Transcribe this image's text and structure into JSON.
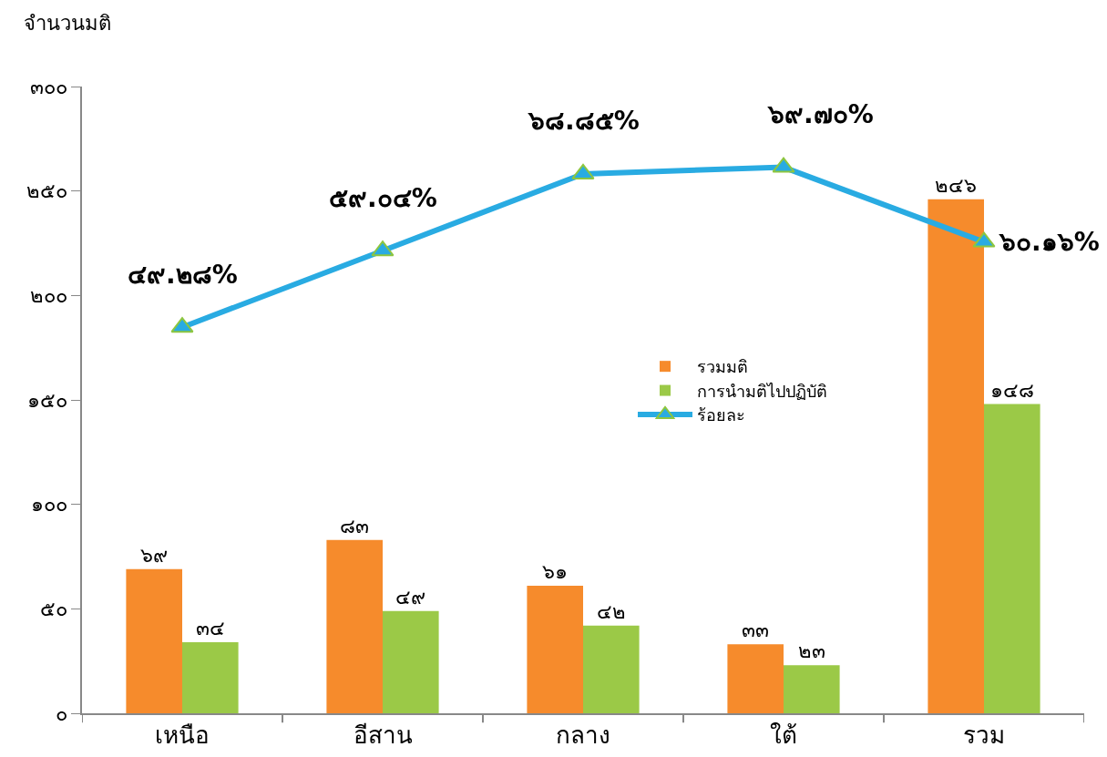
{
  "chart_data": {
    "type": "bar",
    "ylabel": "จำนวนมติ",
    "categories": [
      "เหนือ",
      "อีสาน",
      "กลาง",
      "ใต้",
      "รวม"
    ],
    "series": [
      {
        "name": "รวมมติ",
        "color": "#f68b2c",
        "values": [
          69,
          83,
          61,
          33,
          246
        ],
        "value_labels": [
          "๖๙",
          "๘๓",
          "๖๑",
          "๓๓",
          "๒๔๖"
        ]
      },
      {
        "name": "การนำมติไปปฏิบัติ",
        "color": "#9bc947",
        "values": [
          34,
          49,
          42,
          23,
          148
        ],
        "value_labels": [
          "๓๔",
          "๔๙",
          "๔๒",
          "๒๓",
          "๑๔๘"
        ]
      },
      {
        "name": "ร้อยละ",
        "type": "line",
        "axis": "y2",
        "color": "#29abe2",
        "marker": "triangle",
        "line_style": "solid",
        "values": [
          49.28,
          59.04,
          68.85,
          69.7,
          60.16
        ],
        "value_labels": [
          "๔๙.๒๘%",
          "๕๙.๐๔%",
          "๖๘.๘๕%",
          "๖๙.๗๐%",
          "๖๐.๑๖%"
        ]
      }
    ],
    "ylim": [
      0,
      300
    ],
    "yticks": [
      {
        "value": 0,
        "label": "๐"
      },
      {
        "value": 50,
        "label": "๕๐"
      },
      {
        "value": 100,
        "label": "๑๐๐"
      },
      {
        "value": 150,
        "label": "๑๕๐"
      },
      {
        "value": 200,
        "label": "๒๐๐"
      },
      {
        "value": 250,
        "label": "๒๕๐"
      },
      {
        "value": 300,
        "label": "๓๐๐"
      }
    ],
    "y2lim": [
      0,
      80
    ],
    "tick_labels": "xy",
    "grid": false,
    "legend": "right"
  }
}
